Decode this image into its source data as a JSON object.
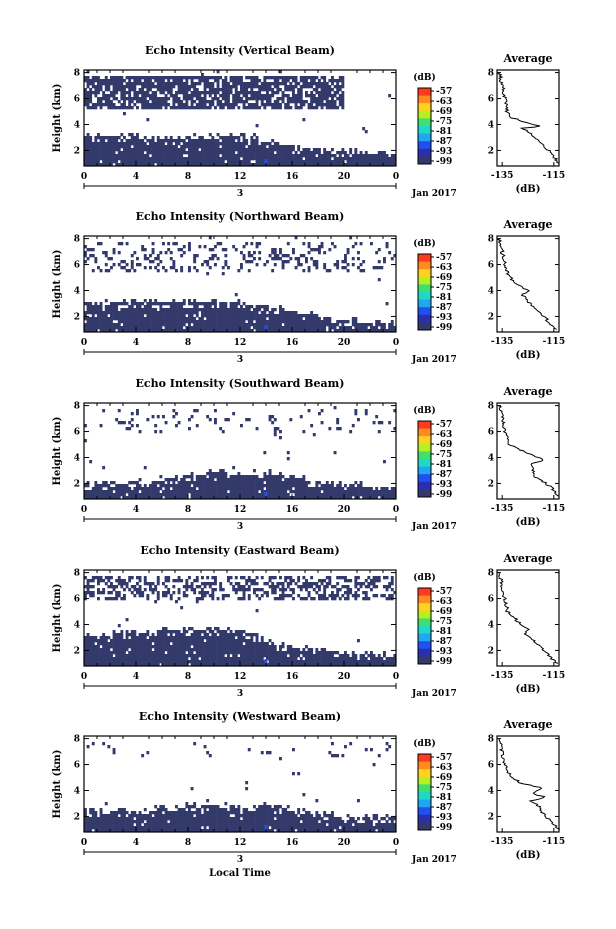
{
  "colors": {
    "background": "#ffffff",
    "echo_fill": "#333a6b",
    "colorbar": [
      "#ff3b1f",
      "#ff8a1f",
      "#ffd21f",
      "#b8f01f",
      "#3fe070",
      "#1fd8c8",
      "#1fa8f0",
      "#2050f0",
      "#2a2fb0",
      "#333a6b"
    ]
  },
  "chart_data": [
    {
      "type": "heatmap",
      "title": "Echo Intensity (Vertical Beam)",
      "ylabel": "Height (km)",
      "xticks": [
        "0",
        "4",
        "8",
        "12",
        "16",
        "20",
        "0"
      ],
      "yticks": [
        "2",
        "4",
        "6",
        "8"
      ],
      "xlim": [
        0,
        24
      ],
      "ylim": [
        0.8,
        8.2
      ],
      "date_number": "3",
      "date_label": "Jan 2017",
      "colorbar": {
        "unit": "(dB)",
        "ticks": [
          "-57",
          "-63",
          "-69",
          "-75",
          "-81",
          "-87",
          "-93",
          "-99"
        ]
      },
      "layer_top_km": [
        [
          0,
          3.1
        ],
        [
          1,
          3.1
        ],
        [
          3,
          3.1
        ],
        [
          6,
          2.9
        ],
        [
          9,
          3.0
        ],
        [
          12,
          3.0
        ],
        [
          14,
          2.7
        ],
        [
          16,
          2.3
        ],
        [
          18,
          2.1
        ],
        [
          20,
          1.9
        ],
        [
          22,
          1.8
        ],
        [
          24,
          1.8
        ]
      ],
      "aloft_echo": {
        "bottom_km": 5.2,
        "top_km": 7.8,
        "x_end_h": 20,
        "density": 0.78
      },
      "average": {
        "title": "Average",
        "xlabel": "(dB)",
        "xticks": [
          "-135",
          "-115"
        ],
        "xlim": [
          -137,
          -113
        ],
        "yticks": [
          "2",
          "4",
          "6",
          "8"
        ],
        "ylim": [
          0.8,
          8.2
        ],
        "profile": [
          [
            -113,
            1.0
          ],
          [
            -115,
            1.5
          ],
          [
            -117,
            2.0
          ],
          [
            -120,
            2.5
          ],
          [
            -122,
            3.0
          ],
          [
            -125,
            3.5
          ],
          [
            -128,
            3.7
          ],
          [
            -119,
            3.85
          ],
          [
            -123,
            4.0
          ],
          [
            -131,
            4.5
          ],
          [
            -133,
            5.0
          ],
          [
            -134,
            6.0
          ],
          [
            -135,
            7.0
          ],
          [
            -136,
            8.0
          ]
        ]
      }
    },
    {
      "type": "heatmap",
      "title": "Echo Intensity (Northward Beam)",
      "ylabel": "Height (km)",
      "xticks": [
        "0",
        "4",
        "8",
        "12",
        "16",
        "20",
        "0"
      ],
      "yticks": [
        "2",
        "4",
        "6",
        "8"
      ],
      "xlim": [
        0,
        24
      ],
      "ylim": [
        0.8,
        8.2
      ],
      "date_number": "3",
      "date_label": "Jan 2017",
      "colorbar": {
        "unit": "(dB)",
        "ticks": [
          "-57",
          "-63",
          "-69",
          "-75",
          "-81",
          "-87",
          "-93",
          "-99"
        ]
      },
      "layer_top_km": [
        [
          0,
          3.0
        ],
        [
          2,
          3.0
        ],
        [
          4,
          3.0
        ],
        [
          7,
          3.0
        ],
        [
          10,
          3.0
        ],
        [
          12,
          3.0
        ],
        [
          14,
          2.8
        ],
        [
          16,
          2.4
        ],
        [
          18,
          2.0
        ],
        [
          20,
          1.7
        ],
        [
          22,
          1.5
        ],
        [
          24,
          1.5
        ]
      ],
      "aloft_echo": {
        "bottom_km": 5.5,
        "top_km": 7.8,
        "x_end_h": 24,
        "density": 0.22
      },
      "average": {
        "title": "Average",
        "xlabel": "(dB)",
        "xticks": [
          "-135",
          "-115"
        ],
        "xlim": [
          -137,
          -113
        ],
        "yticks": [
          "2",
          "4",
          "6",
          "8"
        ],
        "ylim": [
          0.8,
          8.2
        ],
        "profile": [
          [
            -114,
            1.0
          ],
          [
            -117,
            1.6
          ],
          [
            -120,
            2.2
          ],
          [
            -123,
            2.8
          ],
          [
            -126,
            3.3
          ],
          [
            -127,
            3.7
          ],
          [
            -125,
            4.0
          ],
          [
            -129,
            4.5
          ],
          [
            -132,
            5.0
          ],
          [
            -134,
            6.0
          ],
          [
            -135,
            7.0
          ],
          [
            -136,
            8.0
          ]
        ]
      }
    },
    {
      "type": "heatmap",
      "title": "Echo Intensity (Southward Beam)",
      "ylabel": "Height (km)",
      "xticks": [
        "0",
        "4",
        "8",
        "12",
        "16",
        "20",
        "0"
      ],
      "yticks": [
        "2",
        "4",
        "6",
        "8"
      ],
      "xlim": [
        0,
        24
      ],
      "ylim": [
        0.8,
        8.2
      ],
      "date_number": "3",
      "date_label": "Jan 2017",
      "colorbar": {
        "unit": "(dB)",
        "ticks": [
          "-57",
          "-63",
          "-69",
          "-75",
          "-81",
          "-87",
          "-93",
          "-99"
        ]
      },
      "layer_top_km": [
        [
          0,
          2.0
        ],
        [
          2,
          2.0
        ],
        [
          4,
          2.1
        ],
        [
          6,
          2.3
        ],
        [
          8,
          2.6
        ],
        [
          10,
          2.8
        ],
        [
          12,
          2.7
        ],
        [
          14,
          2.8
        ],
        [
          16,
          2.5
        ],
        [
          18,
          2.1
        ],
        [
          20,
          1.9
        ],
        [
          22,
          1.8
        ],
        [
          24,
          1.8
        ]
      ],
      "aloft_echo": {
        "bottom_km": 6.0,
        "top_km": 7.8,
        "x_end_h": 24,
        "density": 0.08
      },
      "average": {
        "title": "Average",
        "xlabel": "(dB)",
        "xticks": [
          "-135",
          "-115"
        ],
        "xlim": [
          -137,
          -113
        ],
        "yticks": [
          "2",
          "4",
          "6",
          "8"
        ],
        "ylim": [
          0.8,
          8.2
        ],
        "profile": [
          [
            -113,
            1.0
          ],
          [
            -115,
            1.5
          ],
          [
            -118,
            2.0
          ],
          [
            -122,
            2.5
          ],
          [
            -123,
            3.0
          ],
          [
            -124,
            3.5
          ],
          [
            -119,
            3.8
          ],
          [
            -122,
            4.1
          ],
          [
            -126,
            4.4
          ],
          [
            -132,
            5.0
          ],
          [
            -134,
            6.0
          ],
          [
            -135,
            7.0
          ],
          [
            -136,
            8.0
          ]
        ]
      }
    },
    {
      "type": "heatmap",
      "title": "Echo Intensity (Eastward Beam)",
      "ylabel": "Height (km)",
      "xticks": [
        "0",
        "4",
        "8",
        "12",
        "16",
        "20",
        "0"
      ],
      "yticks": [
        "2",
        "4",
        "6",
        "8"
      ],
      "xlim": [
        0,
        24
      ],
      "ylim": [
        0.8,
        8.2
      ],
      "date_number": "3",
      "date_label": "Jan 2017",
      "colorbar": {
        "unit": "(dB)",
        "ticks": [
          "-57",
          "-63",
          "-69",
          "-75",
          "-81",
          "-87",
          "-93",
          "-99"
        ]
      },
      "layer_top_km": [
        [
          0,
          3.2
        ],
        [
          2,
          3.2
        ],
        [
          4,
          3.3
        ],
        [
          6,
          3.5
        ],
        [
          8,
          3.6
        ],
        [
          10,
          3.6
        ],
        [
          12,
          3.6
        ],
        [
          14,
          2.7
        ],
        [
          16,
          2.3
        ],
        [
          18,
          2.0
        ],
        [
          20,
          1.8
        ],
        [
          22,
          1.6
        ],
        [
          24,
          1.6
        ]
      ],
      "aloft_echo": {
        "bottom_km": 5.8,
        "top_km": 7.8,
        "x_end_h": 24,
        "density": 0.45
      },
      "average": {
        "title": "Average",
        "xlabel": "(dB)",
        "xticks": [
          "-135",
          "-115"
        ],
        "xlim": [
          -137,
          -113
        ],
        "yticks": [
          "2",
          "4",
          "6",
          "8"
        ],
        "ylim": [
          0.8,
          8.2
        ],
        "profile": [
          [
            -114,
            1.0
          ],
          [
            -117,
            1.6
          ],
          [
            -120,
            2.2
          ],
          [
            -123,
            2.8
          ],
          [
            -126,
            3.3
          ],
          [
            -125,
            3.7
          ],
          [
            -128,
            4.0
          ],
          [
            -130,
            4.5
          ],
          [
            -133,
            5.0
          ],
          [
            -134,
            6.0
          ],
          [
            -135,
            7.0
          ],
          [
            -136,
            8.0
          ]
        ]
      }
    },
    {
      "type": "heatmap",
      "title": "Echo Intensity (Westward Beam)",
      "ylabel": "Height (km)",
      "xticks": [
        "0",
        "4",
        "8",
        "12",
        "16",
        "20",
        "0"
      ],
      "yticks": [
        "2",
        "4",
        "6",
        "8"
      ],
      "xlim": [
        0,
        24
      ],
      "ylim": [
        0.8,
        8.2
      ],
      "date_number": "3",
      "date_label": "Jan 2017",
      "xlabel": "Local Time",
      "colorbar": {
        "unit": "(dB)",
        "ticks": [
          "-57",
          "-63",
          "-69",
          "-75",
          "-81",
          "-87",
          "-93",
          "-99"
        ]
      },
      "layer_top_km": [
        [
          0,
          2.3
        ],
        [
          2,
          2.3
        ],
        [
          4,
          2.4
        ],
        [
          6,
          2.6
        ],
        [
          8,
          2.8
        ],
        [
          10,
          2.8
        ],
        [
          12,
          2.7
        ],
        [
          14,
          2.8
        ],
        [
          16,
          2.5
        ],
        [
          18,
          2.2
        ],
        [
          20,
          2.0
        ],
        [
          22,
          1.9
        ],
        [
          24,
          1.9
        ]
      ],
      "aloft_echo": {
        "bottom_km": 6.5,
        "top_km": 7.8,
        "x_end_h": 24,
        "density": 0.05
      },
      "average": {
        "title": "Average",
        "xlabel": "(dB)",
        "xticks": [
          "-135",
          "-115"
        ],
        "xlim": [
          -137,
          -113
        ],
        "yticks": [
          "2",
          "4",
          "6",
          "8"
        ],
        "ylim": [
          0.8,
          8.2
        ],
        "profile": [
          [
            -113,
            1.0
          ],
          [
            -116,
            1.6
          ],
          [
            -119,
            2.2
          ],
          [
            -121,
            2.8
          ],
          [
            -124,
            3.2
          ],
          [
            -118,
            3.5
          ],
          [
            -123,
            3.7
          ],
          [
            -120,
            4.2
          ],
          [
            -128,
            4.6
          ],
          [
            -132,
            5.2
          ],
          [
            -134,
            6.0
          ],
          [
            -135,
            7.0
          ],
          [
            -136,
            8.0
          ]
        ]
      }
    }
  ]
}
